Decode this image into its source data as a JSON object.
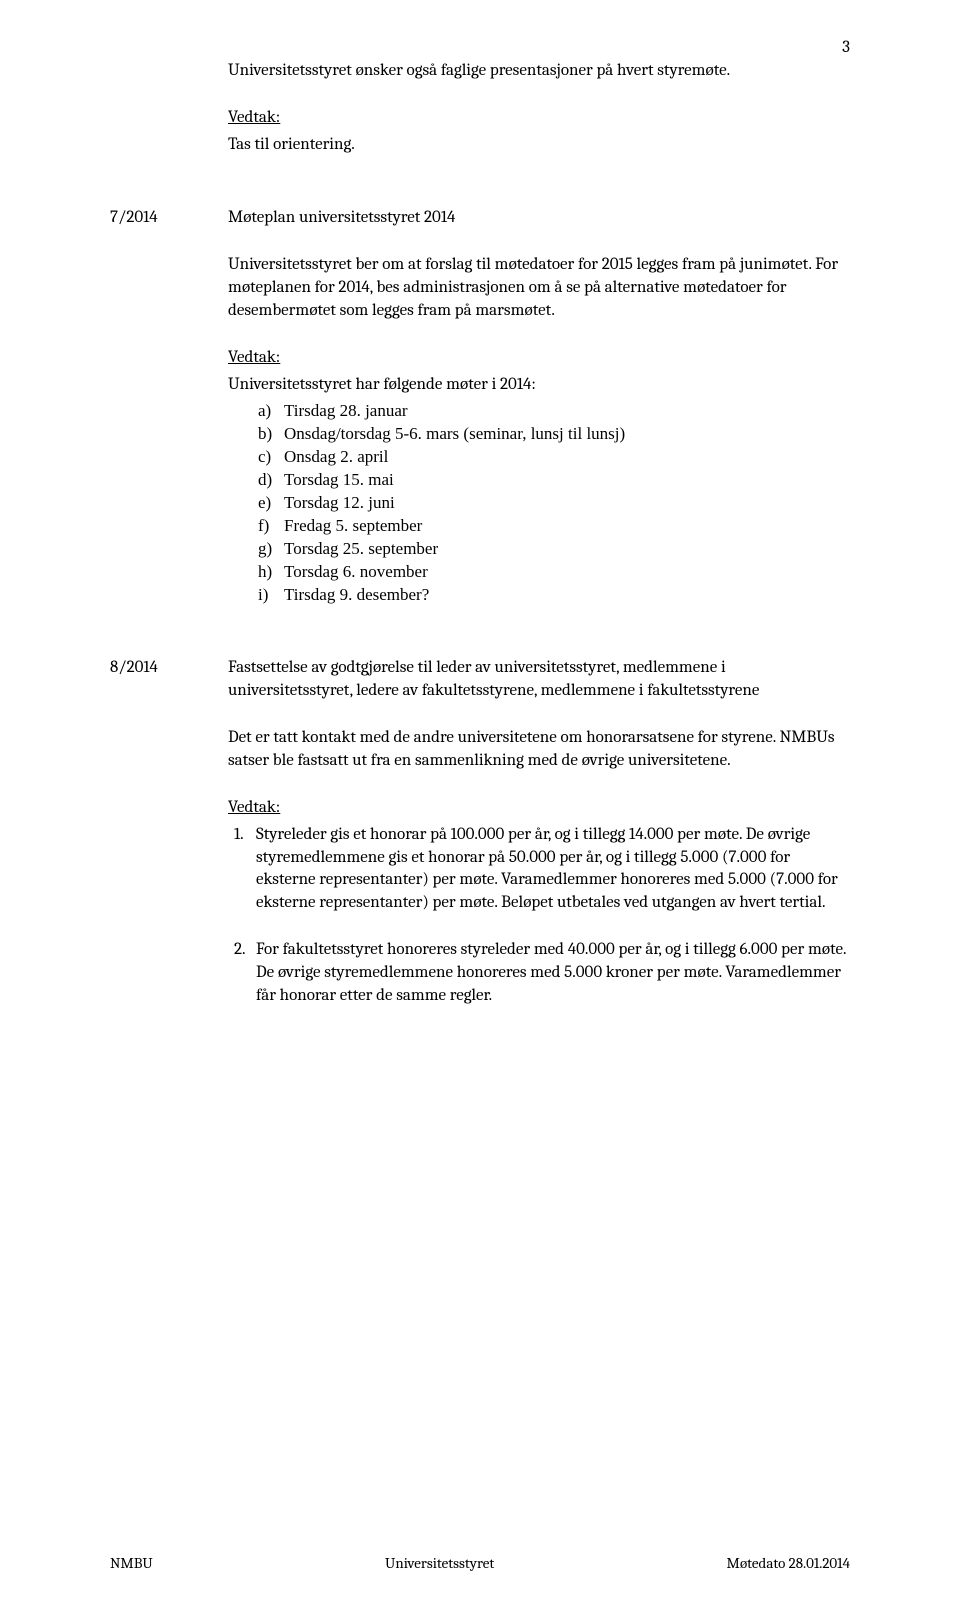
{
  "page_number": "3",
  "section1": {
    "intro": "Universitetsstyret ønsker også faglige presentasjoner på hvert styremøte.",
    "vedtak_label": "Vedtak:",
    "vedtak_text": "Tas til orientering."
  },
  "section7": {
    "ref": "7/2014",
    "title": "Møteplan universitetsstyret 2014",
    "para": "Universitetsstyret ber om at forslag til møtedatoer for 2015 legges fram på junimøtet. For møteplanen for 2014, bes administrasjonen om å se på alternative møtedatoer for desembermøtet som legges fram på marsmøtet.",
    "vedtak_label": "Vedtak:",
    "vedtak_intro": "Universitetsstyret har følgende møter i 2014:",
    "items": [
      {
        "m": "a)",
        "t": "Tirsdag 28. januar"
      },
      {
        "m": "b)",
        "t": "Onsdag/torsdag 5-6. mars (seminar, lunsj til lunsj)"
      },
      {
        "m": "c)",
        "t": "Onsdag 2. april"
      },
      {
        "m": "d)",
        "t": "Torsdag 15. mai"
      },
      {
        "m": "e)",
        "t": "Torsdag 12. juni"
      },
      {
        "m": "f)",
        "t": "Fredag 5. september"
      },
      {
        "m": "g)",
        "t": "Torsdag 25. september"
      },
      {
        "m": "h)",
        "t": "Torsdag 6. november"
      },
      {
        "m": "i)",
        "t": "Tirsdag 9. desember?"
      }
    ]
  },
  "section8": {
    "ref": "8/2014",
    "title": "Fastsettelse av godtgjørelse til leder av universitetsstyret, medlemmene i universitetsstyret, ledere av fakultetsstyrene, medlemmene i fakultetsstyrene",
    "para": "Det er tatt kontakt med de andre universitetene om honorarsatsene for styrene. NMBUs satser ble fastsatt ut fra en sammenlikning med de øvrige universitetene.",
    "vedtak_label": "Vedtak:",
    "items": [
      {
        "m": "1.",
        "t": "Styreleder gis et honorar på 100.000 per år, og i tillegg 14.000 per møte. De øvrige styremedlemmene gis et honorar på 50.000 per år, og i tillegg 5.000 (7.000 for eksterne representanter) per møte. Varamedlemmer honoreres med 5.000 (7.000 for eksterne representanter) per møte. Beløpet utbetales ved utgangen av hvert tertial."
      },
      {
        "m": "2.",
        "t": "For fakultetsstyret honoreres styreleder med 40.000 per år, og i tillegg 6.000 per møte. De øvrige styremedlemmene honoreres med 5.000 kroner per møte. Varamedlemmer får honorar etter de samme regler."
      }
    ]
  },
  "footer": {
    "left": "NMBU",
    "center": "Universitetsstyret",
    "right": "Møtedato 28.01.2014"
  }
}
